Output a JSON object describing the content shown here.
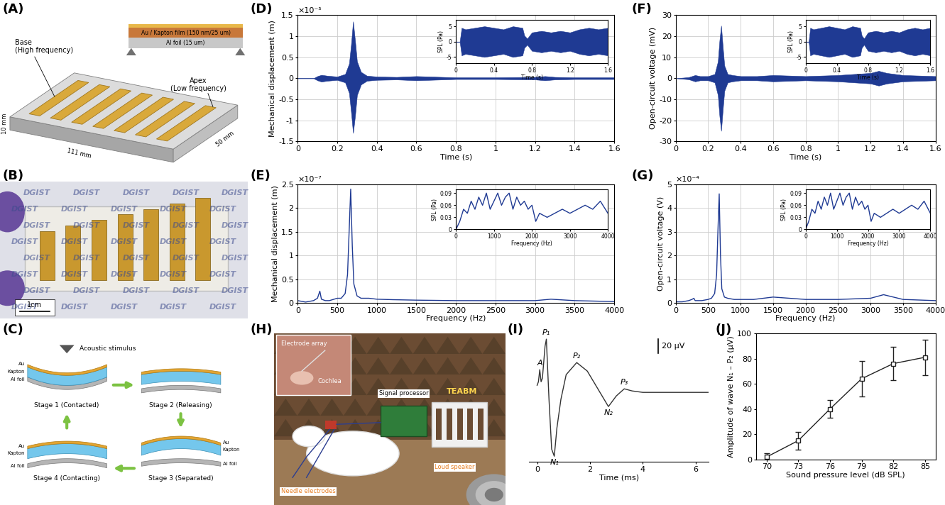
{
  "chart_data": [
    {
      "panel": "(D)",
      "type": "envelope",
      "color": "#1f3a93",
      "x": [
        0,
        0.08,
        0.1,
        0.12,
        0.15,
        0.2,
        0.24,
        0.26,
        0.27,
        0.28,
        0.29,
        0.3,
        0.32,
        0.35,
        0.4,
        0.5,
        0.6,
        0.8,
        1.0,
        1.2,
        1.25,
        1.3,
        1.4,
        1.6
      ],
      "upper": [
        0,
        0,
        0.05,
        0.08,
        0.06,
        0.04,
        0.1,
        0.35,
        0.8,
        1.35,
        0.9,
        0.4,
        0.15,
        0.06,
        0.04,
        0.03,
        0.05,
        0.02,
        0.02,
        0.03,
        0.05,
        0.03,
        0.02,
        0.02
      ],
      "lower": [
        0,
        0,
        -0.05,
        -0.08,
        -0.06,
        -0.04,
        -0.1,
        -0.35,
        -0.8,
        -1.3,
        -0.9,
        -0.4,
        -0.15,
        -0.06,
        -0.04,
        -0.03,
        -0.05,
        -0.02,
        -0.02,
        -0.03,
        -0.05,
        -0.03,
        -0.02,
        -0.02
      ],
      "xlim": [
        0,
        1.6
      ],
      "xticks": [
        0,
        0.2,
        0.4,
        0.6,
        0.8,
        1,
        1.2,
        1.4,
        1.6
      ],
      "ylim": [
        -1.5,
        1.5
      ],
      "yticks": [
        -1.5,
        -1,
        -0.5,
        0,
        0.5,
        1,
        1.5
      ],
      "xlabel": "Time (s)",
      "ylabel": "Mechanical displacement (m)",
      "axis_multiplier": "×10⁻⁵",
      "grid": true,
      "inset": {
        "type": "envelope",
        "color": "#1f3a93",
        "x": [
          0,
          0.04,
          0.06,
          0.1,
          0.2,
          0.3,
          0.4,
          0.5,
          0.6,
          0.7,
          0.72,
          0.75,
          0.8,
          0.9,
          1.0,
          1.1,
          1.2,
          1.3,
          1.4,
          1.5,
          1.6
        ],
        "upper": [
          0,
          0,
          4.5,
          4,
          4.5,
          5,
          4.5,
          4,
          5,
          4.5,
          2,
          1,
          3,
          3.5,
          3,
          3.5,
          3,
          4,
          4.5,
          4,
          4.5
        ],
        "lower": [
          0,
          0,
          -4.5,
          -4,
          -4.5,
          -5,
          -4.5,
          -4,
          -5,
          -4.5,
          -2,
          -1,
          -3,
          -3.5,
          -3,
          -3.5,
          -3,
          -4,
          -4.5,
          -4,
          -4.5
        ],
        "xlim": [
          0,
          1.6
        ],
        "xticks": [
          0,
          0.4,
          0.8,
          1.2,
          1.6
        ],
        "ylim": [
          -7,
          7
        ],
        "yticks": [
          -5,
          0,
          5
        ],
        "xlabel": "Time (s)",
        "ylabel": "SPL (Pa)"
      }
    },
    {
      "panel": "(E)",
      "type": "line",
      "color": "#1f3a93",
      "x": [
        0,
        100,
        200,
        250,
        280,
        300,
        350,
        400,
        500,
        550,
        600,
        630,
        650,
        670,
        690,
        710,
        750,
        800,
        900,
        1000,
        1200,
        1500,
        2000,
        2500,
        3000,
        3200,
        3500,
        4000
      ],
      "values": [
        0.05,
        0.02,
        0.05,
        0.1,
        0.25,
        0.08,
        0.05,
        0.05,
        0.1,
        0.1,
        0.2,
        0.6,
        1.5,
        2.4,
        1.2,
        0.4,
        0.15,
        0.1,
        0.1,
        0.08,
        0.07,
        0.06,
        0.05,
        0.05,
        0.05,
        0.08,
        0.05,
        0.03
      ],
      "xlim": [
        0,
        4000
      ],
      "xticks": [
        0,
        500,
        1000,
        1500,
        2000,
        2500,
        3000,
        3500,
        4000
      ],
      "ylim": [
        0,
        2.5
      ],
      "yticks": [
        0,
        0.5,
        1,
        1.5,
        2,
        2.5
      ],
      "xlabel": "Frequency (Hz)",
      "ylabel": "Mechanical displacement (m)",
      "axis_multiplier": "×10⁻⁷",
      "grid": true,
      "inset": {
        "type": "line",
        "color": "#1f3a93",
        "x": [
          0,
          100,
          200,
          300,
          400,
          500,
          600,
          700,
          800,
          900,
          1000,
          1100,
          1200,
          1300,
          1400,
          1500,
          1600,
          1700,
          1800,
          1900,
          2000,
          2100,
          2200,
          2400,
          2600,
          2800,
          3000,
          3200,
          3400,
          3600,
          3800,
          4000
        ],
        "values": [
          0,
          0.02,
          0.05,
          0.04,
          0.07,
          0.05,
          0.08,
          0.06,
          0.09,
          0.05,
          0.07,
          0.09,
          0.06,
          0.08,
          0.09,
          0.05,
          0.08,
          0.06,
          0.07,
          0.05,
          0.06,
          0.02,
          0.04,
          0.03,
          0.04,
          0.05,
          0.04,
          0.05,
          0.06,
          0.05,
          0.07,
          0.04
        ],
        "xlim": [
          0,
          4000
        ],
        "xticks": [
          0,
          1000,
          2000,
          3000,
          4000
        ],
        "ylim": [
          0,
          0.1
        ],
        "yticks": [
          0,
          0.03,
          0.06,
          0.09
        ],
        "xlabel": "Frequency (Hz)",
        "ylabel": "SPL (Pa)"
      }
    },
    {
      "panel": "(F)",
      "type": "envelope",
      "color": "#1f3a93",
      "x": [
        0,
        0.08,
        0.1,
        0.12,
        0.15,
        0.2,
        0.24,
        0.26,
        0.27,
        0.28,
        0.29,
        0.3,
        0.32,
        0.35,
        0.4,
        0.5,
        0.6,
        0.8,
        1.0,
        1.2,
        1.25,
        1.3,
        1.4,
        1.6
      ],
      "upper": [
        0,
        0.5,
        1,
        1.5,
        1,
        1,
        2,
        8,
        18,
        25,
        15,
        6,
        2,
        1.5,
        1,
        1,
        1.5,
        1,
        1.5,
        2.5,
        3.5,
        2.5,
        1.5,
        1
      ],
      "lower": [
        0,
        -0.5,
        -1,
        -1.5,
        -1,
        -1,
        -2,
        -8,
        -18,
        -25,
        -15,
        -6,
        -2,
        -1.5,
        -1,
        -1,
        -1.5,
        -1,
        -1.5,
        -2.5,
        -3.5,
        -2.5,
        -1.5,
        -1
      ],
      "xlim": [
        0,
        1.6
      ],
      "xticks": [
        0,
        0.2,
        0.4,
        0.6,
        0.8,
        1,
        1.2,
        1.4,
        1.6
      ],
      "ylim": [
        -30,
        30
      ],
      "yticks": [
        -30,
        -20,
        -10,
        0,
        10,
        20,
        30
      ],
      "xlabel": "Time (s)",
      "ylabel": "Open-circuit voltage (mV)",
      "grid": true,
      "inset": {
        "type": "envelope",
        "color": "#1f3a93",
        "x": [
          0,
          0.04,
          0.06,
          0.1,
          0.2,
          0.3,
          0.4,
          0.5,
          0.6,
          0.7,
          0.72,
          0.75,
          0.8,
          0.9,
          1.0,
          1.1,
          1.2,
          1.3,
          1.4,
          1.5,
          1.6
        ],
        "upper": [
          0,
          0,
          4.5,
          4,
          4.5,
          5,
          4.5,
          4,
          5,
          4.5,
          2,
          1,
          3,
          3.5,
          3,
          3.5,
          3,
          4,
          4.5,
          4,
          4.5
        ],
        "lower": [
          0,
          0,
          -4.5,
          -4,
          -4.5,
          -5,
          -4.5,
          -4,
          -5,
          -4.5,
          -2,
          -1,
          -3,
          -3.5,
          -3,
          -3.5,
          -3,
          -4,
          -4.5,
          -4,
          -4.5
        ],
        "xlim": [
          0,
          1.6
        ],
        "xticks": [
          0,
          0.4,
          0.8,
          1.2,
          1.6
        ],
        "ylim": [
          -7,
          7
        ],
        "yticks": [
          -5,
          0,
          5
        ],
        "xlabel": "Time (s)",
        "ylabel": "SPL (Pa)"
      }
    },
    {
      "panel": "(G)",
      "type": "line",
      "color": "#1f3a93",
      "x": [
        0,
        100,
        200,
        250,
        280,
        300,
        350,
        400,
        500,
        550,
        600,
        630,
        650,
        670,
        690,
        710,
        750,
        800,
        900,
        1000,
        1200,
        1500,
        2000,
        2500,
        3000,
        3200,
        3500,
        4000
      ],
      "values": [
        0.05,
        0.05,
        0.1,
        0.15,
        0.2,
        0.1,
        0.1,
        0.1,
        0.15,
        0.2,
        0.4,
        1.2,
        3,
        4.6,
        2,
        0.6,
        0.25,
        0.2,
        0.15,
        0.15,
        0.15,
        0.25,
        0.15,
        0.15,
        0.2,
        0.35,
        0.15,
        0.1
      ],
      "xlim": [
        0,
        4000
      ],
      "xticks": [
        0,
        500,
        1000,
        1500,
        2000,
        2500,
        3000,
        3500,
        4000
      ],
      "ylim": [
        0,
        5
      ],
      "yticks": [
        0,
        1,
        2,
        3,
        4,
        5
      ],
      "xlabel": "Frequency (Hz)",
      "ylabel": "Open-circuit voltage (V)",
      "axis_multiplier": "×10⁻⁴",
      "grid": true,
      "inset": {
        "type": "line",
        "color": "#1f3a93",
        "x": [
          0,
          100,
          200,
          300,
          400,
          500,
          600,
          700,
          800,
          900,
          1000,
          1100,
          1200,
          1300,
          1400,
          1500,
          1600,
          1700,
          1800,
          1900,
          2000,
          2100,
          2200,
          2400,
          2600,
          2800,
          3000,
          3200,
          3400,
          3600,
          3800,
          4000
        ],
        "values": [
          0,
          0.02,
          0.05,
          0.04,
          0.07,
          0.05,
          0.08,
          0.06,
          0.09,
          0.05,
          0.07,
          0.09,
          0.06,
          0.08,
          0.09,
          0.05,
          0.08,
          0.06,
          0.07,
          0.05,
          0.06,
          0.02,
          0.04,
          0.03,
          0.04,
          0.05,
          0.04,
          0.05,
          0.06,
          0.05,
          0.07,
          0.04
        ],
        "xlim": [
          0,
          4000
        ],
        "xticks": [
          0,
          1000,
          2000,
          3000,
          4000
        ],
        "ylim": [
          0,
          0.1
        ],
        "yticks": [
          0,
          0.03,
          0.06,
          0.09
        ],
        "xlabel": "Frequency (Hz)",
        "ylabel": "SPL (Pa)"
      }
    },
    {
      "panel": "(I)",
      "type": "line",
      "color": "#333333",
      "x": [
        0,
        0.05,
        0.1,
        0.15,
        0.2,
        0.3,
        0.35,
        0.45,
        0.55,
        0.65,
        0.75,
        0.9,
        1.1,
        1.5,
        1.9,
        2.3,
        2.7,
        3.0,
        3.3,
        3.6,
        4.0,
        5.0,
        6.5
      ],
      "values": [
        0,
        5,
        22,
        5,
        10,
        55,
        65,
        -20,
        -90,
        -100,
        -60,
        -20,
        15,
        32,
        20,
        -5,
        -30,
        -15,
        -5,
        -8,
        -10,
        -10,
        -10
      ],
      "point_labels": [
        null,
        null,
        "A",
        null,
        null,
        null,
        "P₁",
        null,
        null,
        "N₁",
        null,
        null,
        null,
        "P₂",
        null,
        null,
        "N₂",
        null,
        "P₃",
        null,
        null,
        null,
        null
      ],
      "scale_bar": {
        "value": 20,
        "label": "20 μV"
      },
      "xlim": [
        -0.3,
        6.5
      ],
      "xticks": [
        0,
        2,
        4,
        6
      ],
      "xlabel": "Time (ms)",
      "tick_labels": "x"
    },
    {
      "panel": "(J)",
      "type": "errorbar",
      "color": "#222222",
      "marker": "square",
      "x": [
        70,
        73,
        76,
        79,
        82,
        85
      ],
      "values": [
        2,
        15,
        40,
        64,
        76,
        81
      ],
      "errors": [
        3,
        7,
        7,
        14,
        13,
        14
      ],
      "xlim": [
        69,
        86
      ],
      "xticks": [
        70,
        73,
        76,
        79,
        82,
        85
      ],
      "ylim": [
        0,
        100
      ],
      "yticks": [
        0,
        20,
        40,
        60,
        80,
        100
      ],
      "xlabel": "Sound pressure level (dB SPL)",
      "ylabel": "Amplitude of wave N₁ – P₂ (μV)"
    }
  ],
  "diagrams": {
    "panel_a": {
      "panel": "(A)",
      "base_label": "Base\n(High frequency)",
      "apex_label": "Apex\n(Low frequency)",
      "film_label": "Au / Kapton film (150 nm/25 um)",
      "foil_label": "Al foil (15 um)",
      "thickness": "10 mm",
      "length": "111 mm",
      "width": "50 mm"
    },
    "panel_b": {
      "panel": "(B)",
      "background_text": "DGIST",
      "scale_bar": "1cm"
    },
    "panel_c": {
      "panel": "(C)",
      "stimulus": "Acoustic stimulus",
      "stages": [
        {
          "title": "Stage 1 (Contacted)",
          "layers": [
            "Au",
            "Kapton",
            "Al foil"
          ]
        },
        {
          "title": "Stage 2 (Releasing)"
        },
        {
          "title": "Stage 3 (Separated)",
          "layers": [
            "Au",
            "Kapton",
            "Al foil"
          ]
        },
        {
          "title": "Stage 4 (Contacting)",
          "layers": [
            "Au",
            "Kapton",
            "Al foil"
          ]
        }
      ]
    },
    "panel_h": {
      "panel": "(H)",
      "electrode_array": "Electrode array",
      "cochlea": "Cochlea",
      "signal_processor": "Signal processor",
      "device": "TEABM",
      "needle_electrodes": "Needle electrodes",
      "loud_speaker": "Loud speaker"
    }
  }
}
